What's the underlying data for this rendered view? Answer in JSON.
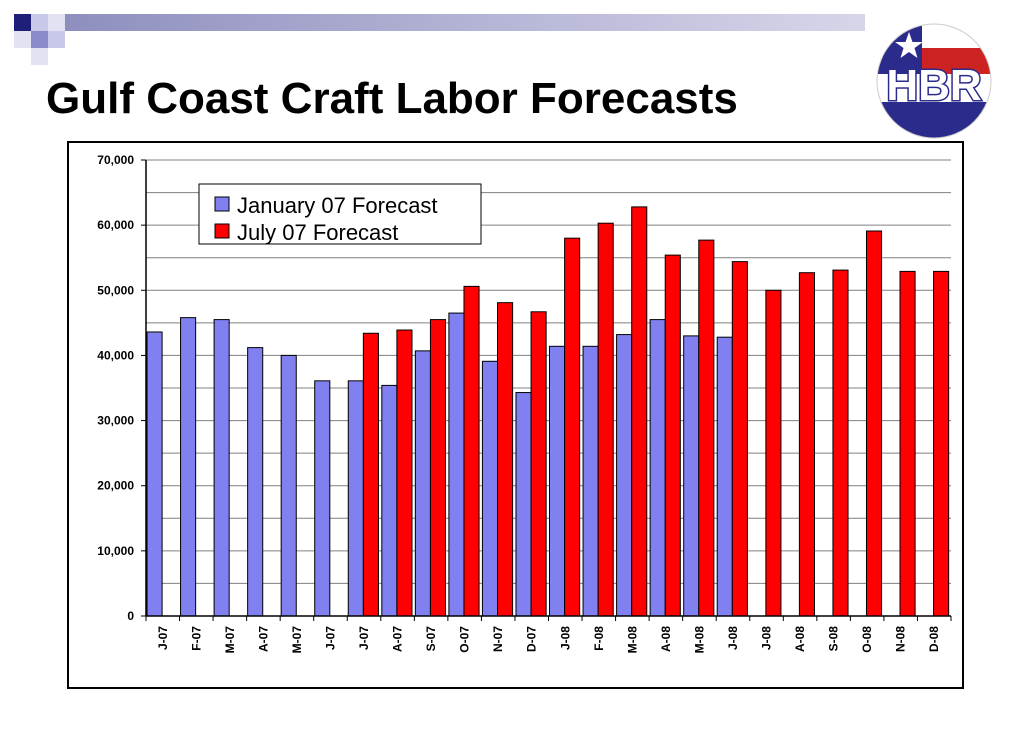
{
  "slide": {
    "title": "Gulf Coast Craft Labor Forecasts",
    "logo_text": "HBR"
  },
  "colors": {
    "jan": "#8080f0",
    "jul": "#ff0000",
    "grid": "#808080",
    "logo_blue": "#2b2b8c",
    "logo_red": "#cc2222"
  },
  "chart_data": {
    "type": "bar",
    "title": "",
    "xlabel": "",
    "ylabel": "",
    "ylim": [
      0,
      70000
    ],
    "yticks": [
      "0",
      "10,000",
      "20,000",
      "30,000",
      "40,000",
      "50,000",
      "60,000",
      "70,000"
    ],
    "grid": true,
    "legend_position": "top-left",
    "categories": [
      "J-07",
      "F-07",
      "M-07",
      "A-07",
      "M-07",
      "J-07",
      "J-07",
      "A-07",
      "S-07",
      "O-07",
      "N-07",
      "D-07",
      "J-08",
      "F-08",
      "M-08",
      "A-08",
      "M-08",
      "J-08",
      "J-08",
      "A-08",
      "S-08",
      "O-08",
      "N-08",
      "D-08"
    ],
    "series": [
      {
        "name": "January 07 Forecast",
        "values": [
          43600,
          45800,
          45500,
          41200,
          40000,
          36100,
          36100,
          35400,
          40700,
          46500,
          39100,
          34300,
          41400,
          41400,
          43200,
          45500,
          43000,
          42800,
          null,
          null,
          null,
          null,
          null,
          null
        ]
      },
      {
        "name": "July 07 Forecast",
        "values": [
          null,
          null,
          null,
          null,
          null,
          null,
          43400,
          43900,
          45500,
          50600,
          48100,
          46700,
          58000,
          60300,
          62800,
          55400,
          57700,
          54400,
          50000,
          52700,
          53100,
          59100,
          52900,
          52900
        ]
      }
    ]
  }
}
